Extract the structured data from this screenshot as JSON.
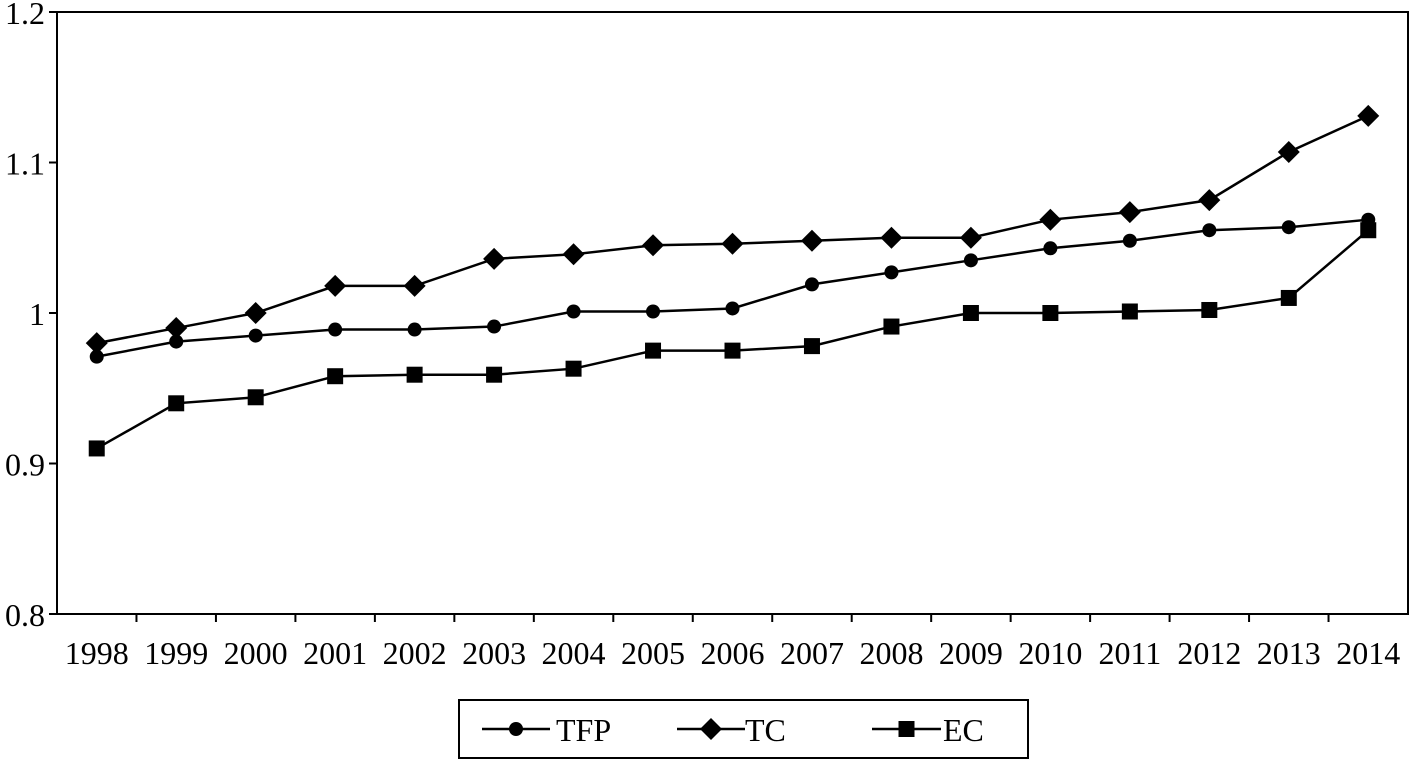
{
  "chart_data": {
    "type": "line",
    "title": "",
    "xlabel": "",
    "ylabel": "",
    "categories": [
      "1998",
      "1999",
      "2000",
      "2001",
      "2002",
      "2003",
      "2004",
      "2005",
      "2006",
      "2007",
      "2008",
      "2009",
      "2010",
      "2011",
      "2012",
      "2013",
      "2014"
    ],
    "ylim": [
      0.8,
      1.2
    ],
    "yticks": [
      0.8,
      0.9,
      1.0,
      1.1,
      1.2
    ],
    "ytick_labels": [
      "0.8",
      "0.9",
      "1",
      "1.1",
      "1.2"
    ],
    "grid": false,
    "legend_position": "bottom",
    "series": [
      {
        "name": "TFP",
        "marker": "circle",
        "color": "#000000",
        "values": [
          0.971,
          0.981,
          0.985,
          0.989,
          0.989,
          0.991,
          1.001,
          1.001,
          1.003,
          1.019,
          1.027,
          1.035,
          1.043,
          1.048,
          1.055,
          1.057,
          1.062
        ]
      },
      {
        "name": "TC",
        "marker": "diamond",
        "color": "#000000",
        "values": [
          0.98,
          0.99,
          1.0,
          1.018,
          1.018,
          1.036,
          1.039,
          1.045,
          1.046,
          1.048,
          1.05,
          1.05,
          1.062,
          1.067,
          1.075,
          1.107,
          1.131
        ]
      },
      {
        "name": "EC",
        "marker": "square",
        "color": "#000000",
        "values": [
          0.91,
          0.94,
          0.944,
          0.958,
          0.959,
          0.959,
          0.963,
          0.975,
          0.975,
          0.978,
          0.991,
          1.0,
          1.0,
          1.001,
          1.002,
          1.01,
          1.055
        ]
      }
    ]
  }
}
